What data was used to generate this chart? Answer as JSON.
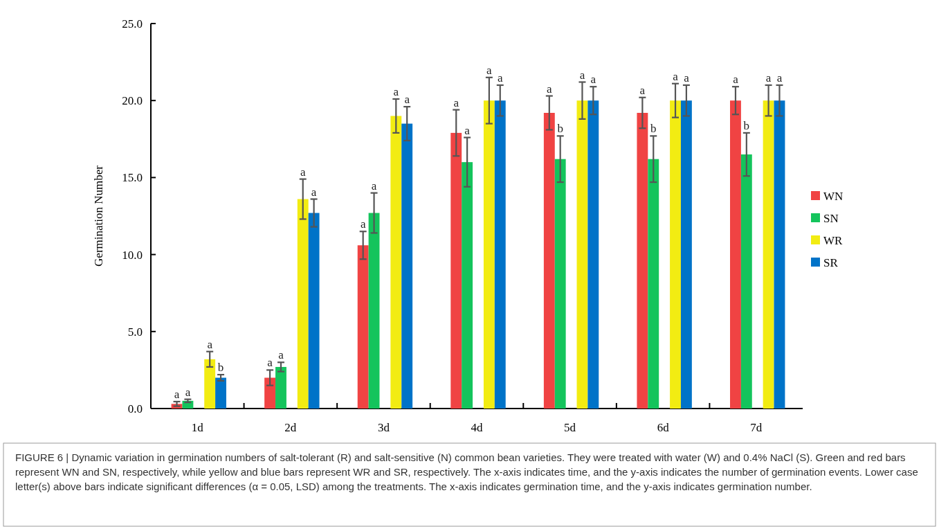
{
  "chart_data": {
    "type": "bar",
    "ylabel": "Germination Number",
    "categories": [
      "1d",
      "2d",
      "3d",
      "4d",
      "5d",
      "6d",
      "7d"
    ],
    "ylim": [
      0,
      25
    ],
    "yticks": [
      {
        "value": 0,
        "label": "0.0"
      },
      {
        "value": 5,
        "label": "5.0"
      },
      {
        "value": 10,
        "label": "10.0"
      },
      {
        "value": 15,
        "label": "15.0"
      },
      {
        "value": 20,
        "label": "20.0"
      },
      {
        "value": 25,
        "label": "25.0"
      }
    ],
    "legend": "right",
    "grid": false,
    "series": [
      {
        "name": "WN",
        "color": "#f04343",
        "values": [
          0.3,
          2.0,
          10.6,
          17.9,
          19.2,
          19.2,
          20.0
        ],
        "errors": [
          0.15,
          0.5,
          0.9,
          1.5,
          1.1,
          1.0,
          0.9
        ],
        "value_labels": [
          "a",
          "a",
          "a",
          "a",
          "a",
          "a",
          "a"
        ]
      },
      {
        "name": "SN",
        "color": "#14c45c",
        "values": [
          0.5,
          2.7,
          12.7,
          16.0,
          16.2,
          16.2,
          16.5
        ],
        "errors": [
          0.1,
          0.3,
          1.3,
          1.6,
          1.5,
          1.5,
          1.4
        ],
        "value_labels": [
          "a",
          "a",
          "a",
          "a",
          "b",
          "b",
          "b"
        ]
      },
      {
        "name": "WR",
        "color": "#f2ec12",
        "values": [
          3.2,
          13.6,
          19.0,
          20.0,
          20.0,
          20.0,
          20.0
        ],
        "errors": [
          0.5,
          1.3,
          1.1,
          1.5,
          1.2,
          1.1,
          1.0
        ],
        "value_labels": [
          "a",
          "a",
          "a",
          "a",
          "a",
          "a",
          "a"
        ]
      },
      {
        "name": "SR",
        "color": "#0073c8",
        "values": [
          2.0,
          12.7,
          18.5,
          20.0,
          20.0,
          20.0,
          20.0
        ],
        "errors": [
          0.2,
          0.9,
          1.1,
          1.0,
          0.9,
          1.0,
          1.0
        ],
        "value_labels": [
          "b",
          "a",
          "a",
          "a",
          "a",
          "a",
          "a"
        ]
      }
    ],
    "annotations": [
      "FIGURE 6 | Dynamic variation in germination numbers of salt-tolerant (R) and salt-sensitive (N) common bean varieties. They were treated with water (W) and 0.4% NaCl (S). Green and red bars represent WN and SN, respectively, while yellow and blue bars represent WR and SR, respectively. The x-axis indicates time, and the y-axis indicates the number of germination events. Lower case letter(s) above bars indicate significant differences (α = 0.05, LSD) among the treatments. The x-axis indicates germination time, and the y-axis indicates germination number."
    ]
  }
}
